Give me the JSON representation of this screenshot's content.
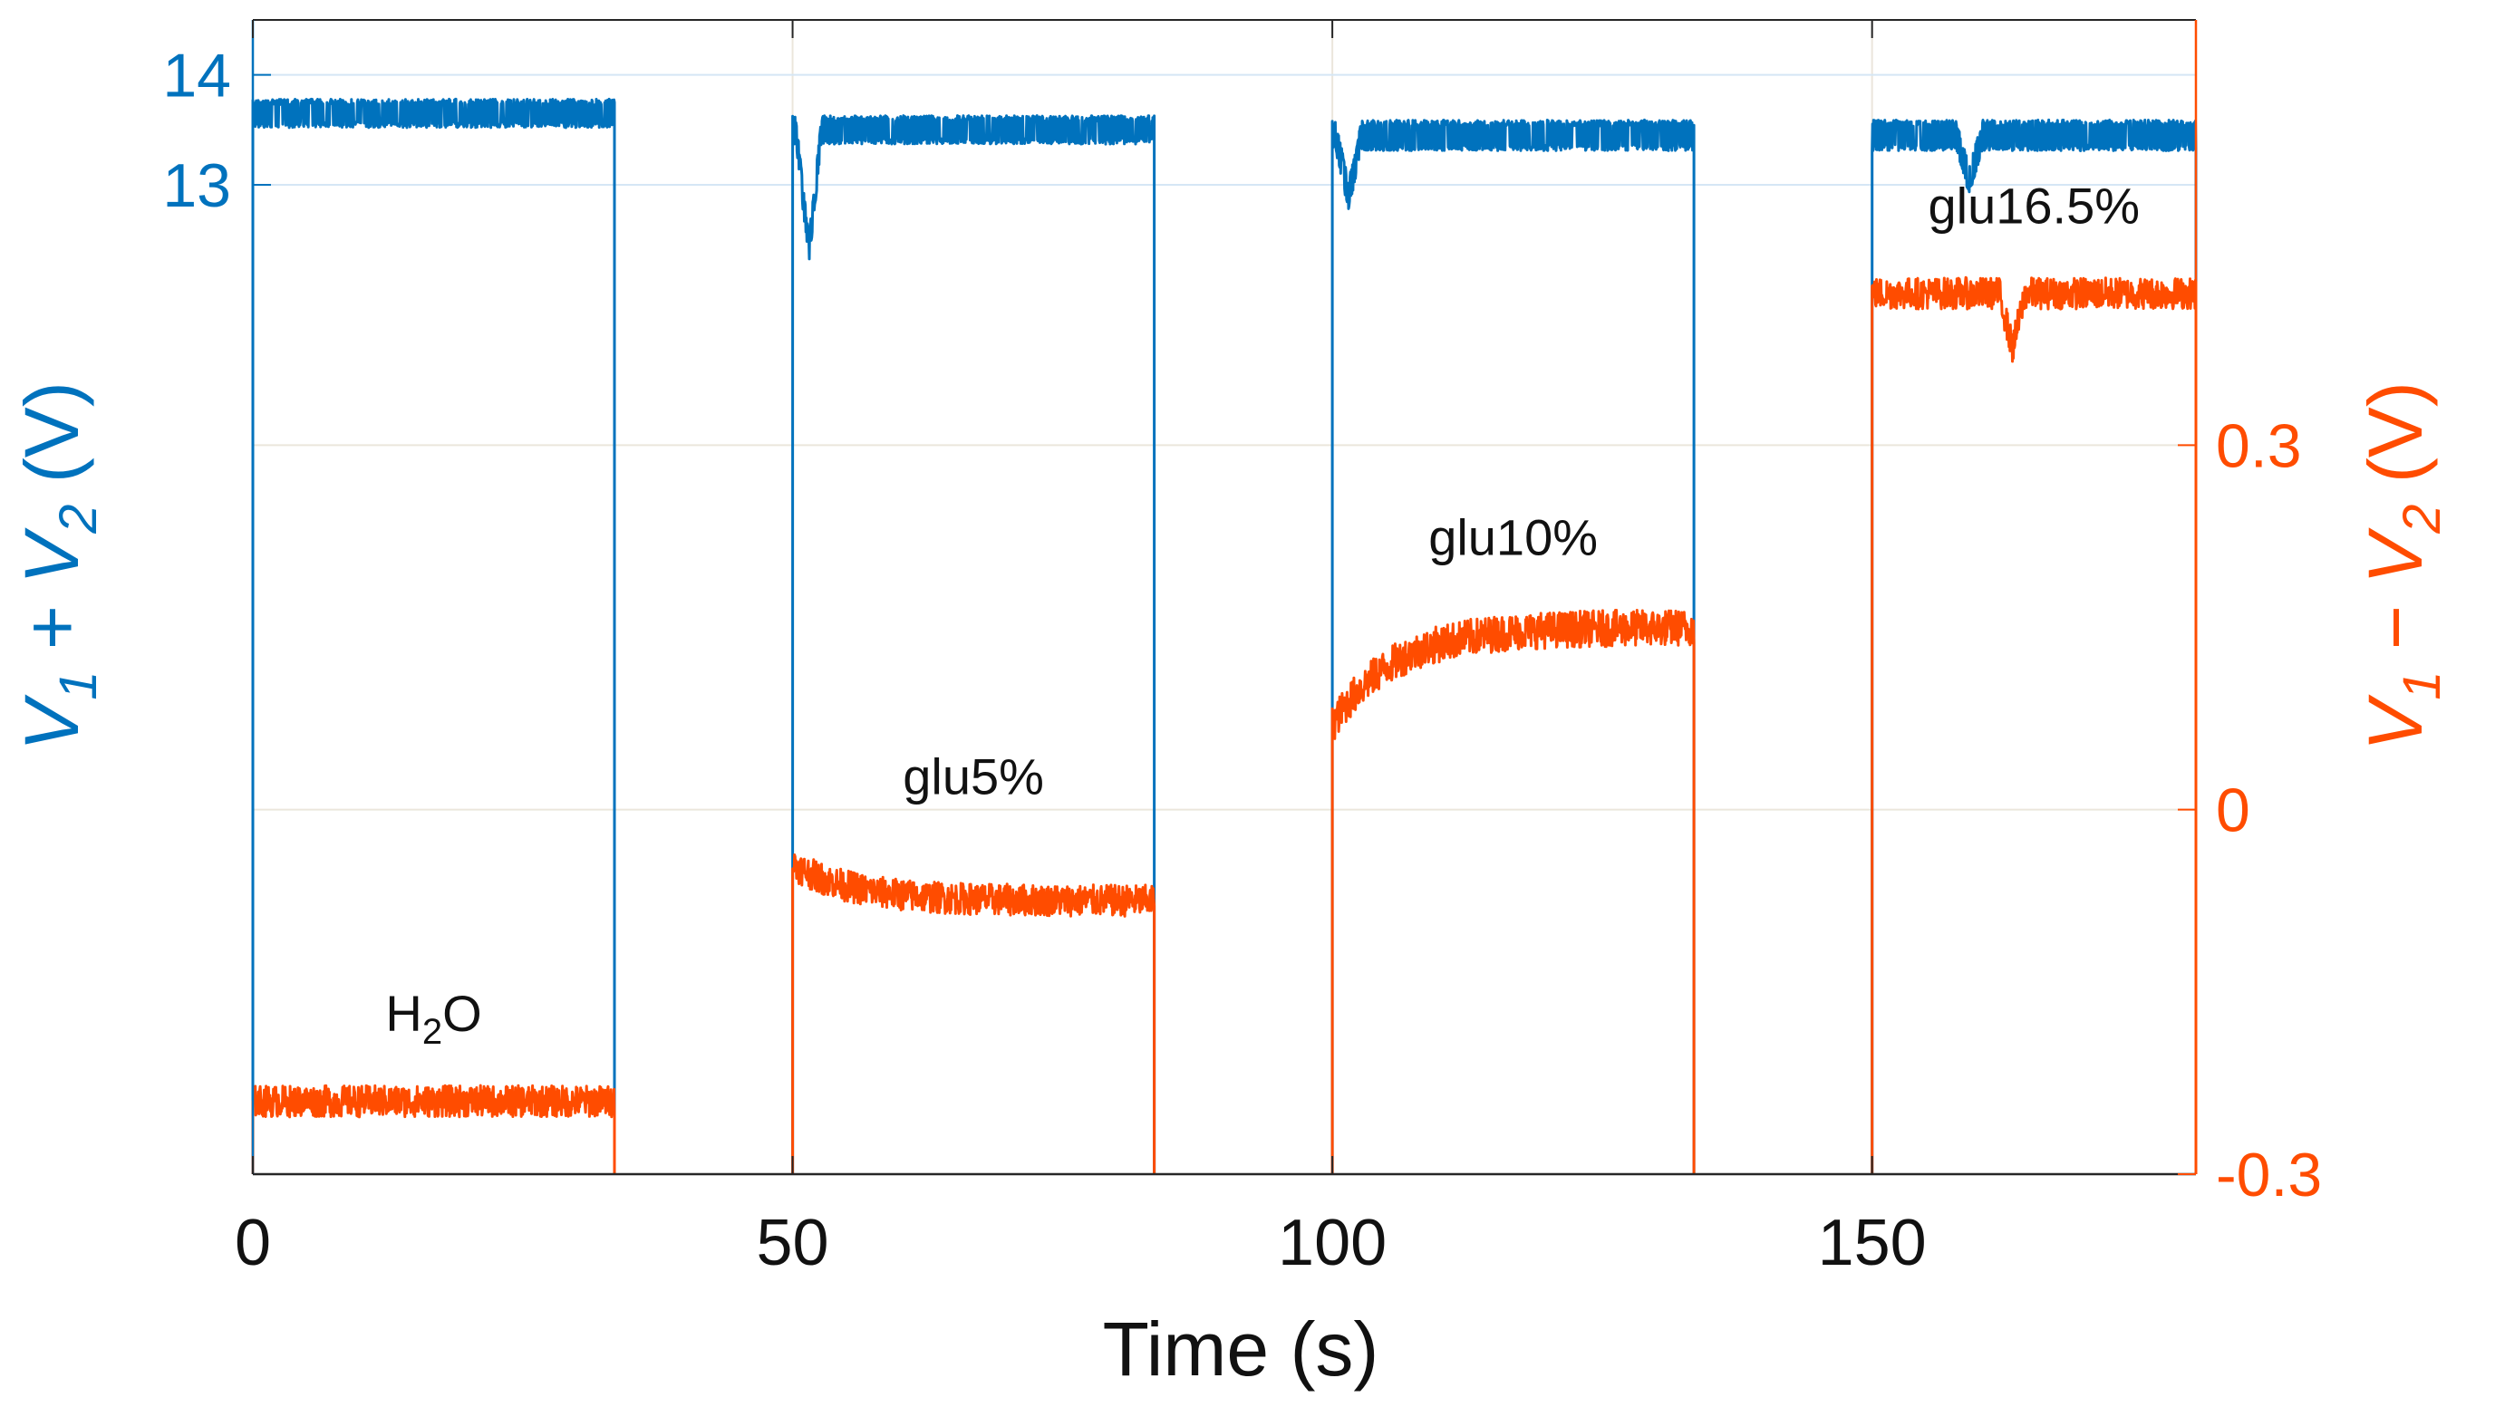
{
  "chart_data": {
    "type": "line",
    "title": "",
    "xlabel": "Time (s)",
    "xlim": [
      0,
      180
    ],
    "x_ticks": [
      0,
      50,
      100,
      150
    ],
    "left_axis": {
      "label_parts": [
        "V",
        "1",
        " + ",
        "V",
        "2",
        " (V)"
      ],
      "color": "#0072BD",
      "ylim": [
        4.0,
        14.5
      ],
      "ticks": [
        13,
        14
      ]
    },
    "right_axis": {
      "label_parts": [
        "V",
        "1",
        " − ",
        "V",
        "2",
        " (V)"
      ],
      "color": "#FF4C00",
      "ylim": [
        -0.3,
        0.65
      ],
      "ticks": [
        -0.3,
        0,
        0.3
      ]
    },
    "grid": true,
    "series": [
      {
        "name": "V1 + V2",
        "axis": "left",
        "color": "#0072BD",
        "segments": [
          {
            "start": 0,
            "end": 33.5,
            "level": 13.65,
            "noise": 0.13
          },
          {
            "start": 50,
            "end": 83.5,
            "level": 13.5,
            "noise": 0.13,
            "dip": {
              "at": 51.5,
              "to": 12.4
            }
          },
          {
            "start": 100,
            "end": 133.5,
            "level": 13.45,
            "noise": 0.14,
            "dip": {
              "at": 101.5,
              "to": 12.9
            }
          },
          {
            "start": 150,
            "end": 180,
            "level": 13.45,
            "noise": 0.14,
            "dip": {
              "at": 159,
              "to": 13.05
            }
          }
        ]
      },
      {
        "name": "V1 − V2",
        "axis": "right",
        "color": "#FF4C00",
        "segments": [
          {
            "start": 0,
            "end": 33.5,
            "level": -0.24,
            "noise": 0.013,
            "annotation_parts": [
              "H",
              "2",
              "O"
            ]
          },
          {
            "start": 50,
            "end": 83.5,
            "level_start": -0.045,
            "level_end": -0.075,
            "noise": 0.013,
            "annotation_parts": [
              "glu5%",
              "",
              ""
            ]
          },
          {
            "start": 100,
            "end": 133.5,
            "level_start": 0.07,
            "level_end": 0.15,
            "noise": 0.015,
            "annotation_parts": [
              "glu10%",
              "",
              ""
            ]
          },
          {
            "start": 150,
            "end": 180,
            "level": 0.425,
            "noise": 0.013,
            "dip": {
              "at": 163,
              "to": 0.38
            },
            "annotation_parts": [
              "glu16.5%",
              "",
              ""
            ]
          }
        ]
      }
    ]
  }
}
